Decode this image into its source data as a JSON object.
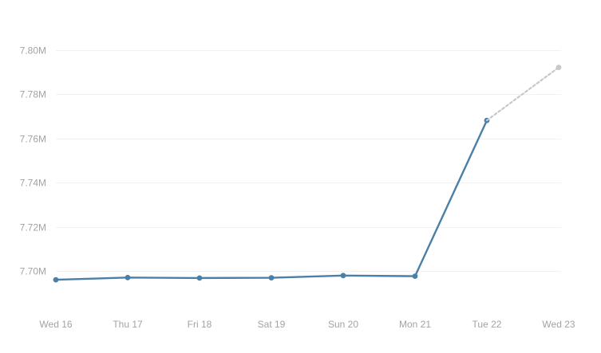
{
  "chart_data": {
    "type": "line",
    "title": "",
    "xlabel": "",
    "ylabel": "",
    "categories": [
      "Wed 16",
      "Thu 17",
      "Fri 18",
      "Sat 19",
      "Sun 20",
      "Mon 21",
      "Tue 22",
      "Wed 23"
    ],
    "y_ticks": [
      "7.70M",
      "7.72M",
      "7.74M",
      "7.76M",
      "7.78M",
      "7.80M"
    ],
    "y_tick_values": [
      7700000,
      7720000,
      7740000,
      7760000,
      7780000,
      7800000
    ],
    "ylim": [
      7680000,
      7810000
    ],
    "grid": true,
    "legend": "none",
    "series": [
      {
        "values": [
          7696000,
          7697000,
          7696800,
          7696900,
          7697900,
          7697600,
          7768200,
          null
        ],
        "color": "#4a7fa8",
        "style": "solid"
      },
      {
        "values": [
          null,
          null,
          null,
          null,
          null,
          null,
          7768200,
          7792200
        ],
        "color": "#c8c8c8",
        "style": "dotted"
      }
    ]
  }
}
